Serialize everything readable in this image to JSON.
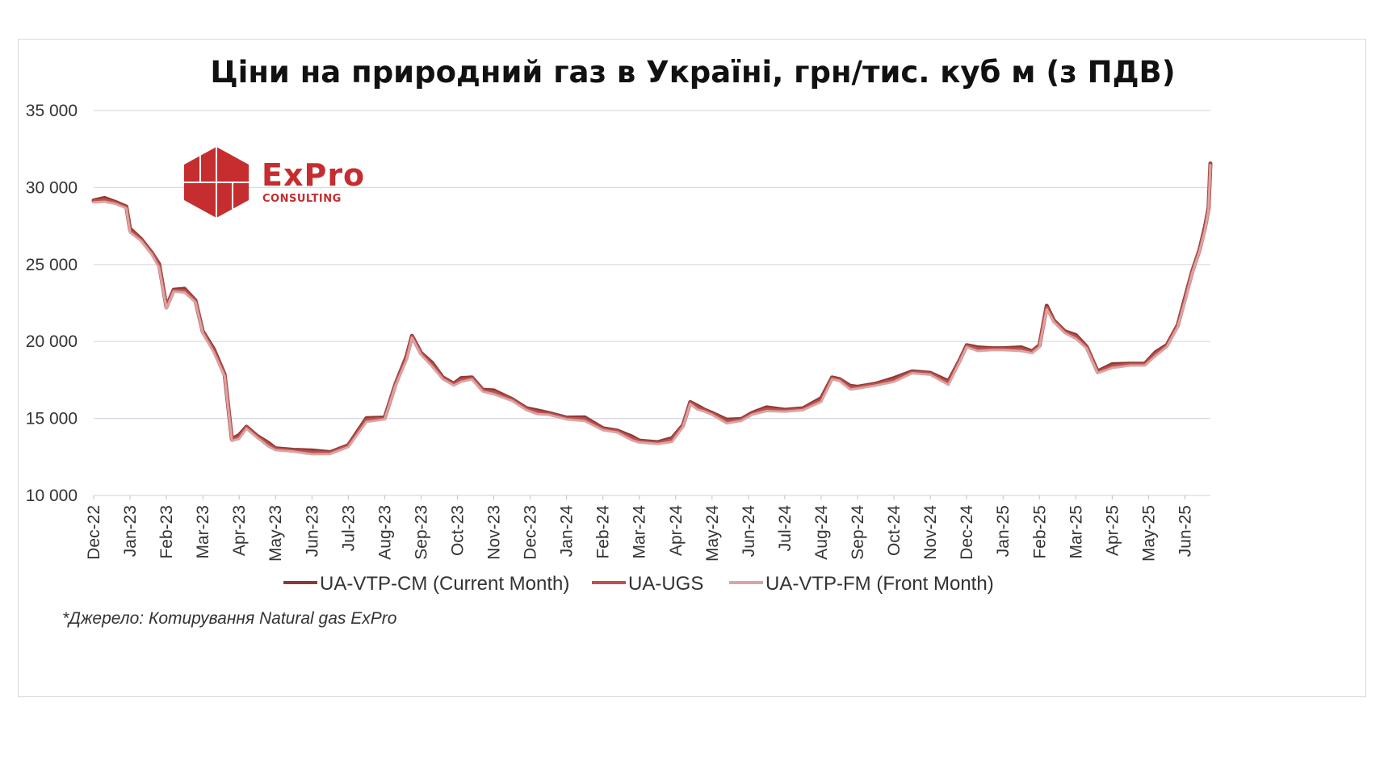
{
  "colors": {
    "cm": "#8b3a37",
    "ugs": "#c0504d",
    "fm": "#d9a5a3",
    "grid": "#d9d9e3",
    "logo": "#c52d2f"
  },
  "logo": {
    "word": "ExPro",
    "sub": "CONSULTING"
  },
  "source_note": "*Джерело: Котирування Natural gas ExPro",
  "chart_data": {
    "type": "line",
    "title": "Ціни на природний газ в Україні, грн/тис. куб м (з ПДВ)",
    "xlabel": "",
    "ylabel": "",
    "ylim": [
      10000,
      35000
    ],
    "grid": true,
    "legend_position": "bottom",
    "y_ticks": [
      10000,
      15000,
      20000,
      25000,
      30000,
      35000
    ],
    "y_tick_labels": [
      "10 000",
      "15 000",
      "20 000",
      "25 000",
      "30 000",
      "35 000"
    ],
    "x_tick_labels": [
      "Dec-22",
      "Jan-23",
      "Feb-23",
      "Mar-23",
      "Apr-23",
      "May-23",
      "Jun-23",
      "Jul-23",
      "Aug-23",
      "Sep-23",
      "Oct-23",
      "Nov-23",
      "Dec-23",
      "Jan-24",
      "Feb-24",
      "Mar-24",
      "Apr-24",
      "May-24",
      "Jun-24",
      "Jul-24",
      "Aug-24",
      "Sep-24",
      "Oct-24",
      "Nov-24",
      "Dec-24",
      "Jan-25",
      "Feb-25",
      "Mar-25",
      "Apr-25",
      "May-25",
      "Jun-25"
    ],
    "x_unit": "months since Dec-22",
    "x_max": 30.7,
    "base_series": {
      "x": [
        0,
        0.3,
        0.6,
        0.9,
        1.0,
        1.3,
        1.6,
        1.8,
        2.0,
        2.2,
        2.5,
        2.8,
        3.0,
        3.3,
        3.6,
        3.8,
        4.0,
        4.2,
        4.5,
        4.8,
        5.0,
        5.5,
        6.0,
        6.5,
        7.0,
        7.5,
        8.0,
        8.3,
        8.6,
        8.75,
        9.0,
        9.3,
        9.6,
        9.9,
        10.1,
        10.4,
        10.7,
        11.0,
        11.5,
        11.9,
        12.2,
        12.5,
        13.0,
        13.5,
        14.0,
        14.4,
        14.8,
        15.0,
        15.5,
        15.9,
        16.2,
        16.4,
        16.6,
        16.8,
        17.0,
        17.4,
        17.8,
        18.1,
        18.5,
        19.0,
        19.5,
        20.0,
        20.3,
        20.5,
        20.8,
        21.0,
        21.5,
        22.0,
        22.5,
        23.0,
        23.5,
        23.8,
        24.0,
        24.3,
        24.7,
        25.0,
        25.5,
        25.8,
        26.0,
        26.2,
        26.4,
        26.7,
        27.0,
        27.3,
        27.6,
        28.0,
        28.5,
        28.9,
        29.2,
        29.5,
        29.8,
        30.0,
        30.2,
        30.4,
        30.55,
        30.65,
        30.7
      ],
      "y": [
        29100,
        29200,
        29000,
        28700,
        27200,
        26600,
        25700,
        24900,
        22200,
        23300,
        23300,
        22600,
        20600,
        19400,
        17800,
        13600,
        13800,
        14400,
        13800,
        13300,
        13000,
        12900,
        12800,
        12750,
        13200,
        14900,
        15000,
        17200,
        18900,
        20300,
        19200,
        18500,
        17600,
        17200,
        17500,
        17600,
        16800,
        16700,
        16200,
        15600,
        15400,
        15300,
        15000,
        14950,
        14300,
        14150,
        13700,
        13500,
        13400,
        13600,
        14500,
        16000,
        15700,
        15500,
        15300,
        14800,
        14900,
        15300,
        15600,
        15500,
        15600,
        16200,
        17600,
        17500,
        17000,
        17000,
        17200,
        17500,
        18000,
        17900,
        17300,
        18700,
        19700,
        19500,
        19500,
        19500,
        19500,
        19300,
        19700,
        22200,
        21300,
        20600,
        20300,
        19600,
        18000,
        18400,
        18500,
        18500,
        19200,
        19700,
        21000,
        22700,
        24500,
        25900,
        27300,
        28600,
        31500
      ]
    },
    "series": [
      {
        "name": "UA-VTP-CM (Current Month)",
        "offset": 120
      },
      {
        "name": "UA-UGS",
        "offset": 0
      },
      {
        "name": "UA-VTP-FM (Front Month)",
        "offset": -120
      }
    ]
  }
}
